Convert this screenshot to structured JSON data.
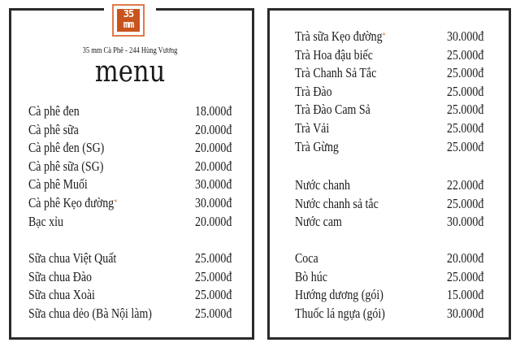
{
  "header": {
    "logo_text": "35 MM",
    "subtitle": "35 mm Cà Phê - 244 Hùng Vương",
    "title": "menu"
  },
  "left": [
    [
      {
        "name": "Cà phê đen",
        "price": "18.000đ"
      },
      {
        "name": "Cà phê sữa",
        "price": "20.000đ"
      },
      {
        "name": "Cà phê đen (SG)",
        "price": "20.000đ"
      },
      {
        "name": "Cà phê sữa (SG)",
        "price": "20.000đ"
      },
      {
        "name": "Cà phê Muối",
        "price": "30.000đ"
      },
      {
        "name": "Cà phê Kẹo đường",
        "price": "30.000đ",
        "star": "*"
      },
      {
        "name": "Bạc xỉu",
        "price": "20.000đ"
      }
    ],
    [
      {
        "name": "Sữa chua Việt Quất",
        "price": "25.000đ"
      },
      {
        "name": "Sữa chua Đào",
        "price": "25.000đ"
      },
      {
        "name": "Sữa chua Xoài",
        "price": "25.000đ"
      },
      {
        "name": "Sữa chua dẻo (Bà Nội làm)",
        "price": "25.000đ"
      }
    ]
  ],
  "right": [
    [
      {
        "name": "Trà sữa Kẹo đường",
        "price": "30.000đ",
        "star": "*"
      },
      {
        "name": "Trà Hoa đậu biếc",
        "price": "25.000đ"
      },
      {
        "name": "Trà Chanh Sả Tắc",
        "price": "25.000đ"
      },
      {
        "name": "Trà Đào",
        "price": "25.000đ"
      },
      {
        "name": "Trà Đào Cam Sả",
        "price": "25.000đ"
      },
      {
        "name": "Trà Vải",
        "price": "25.000đ"
      },
      {
        "name": "Trà Gừng",
        "price": "25.000đ"
      }
    ],
    [
      {
        "name": "Nước chanh",
        "price": "22.000đ"
      },
      {
        "name": "Nước chanh sả tắc",
        "price": "25.000đ"
      },
      {
        "name": "Nước cam",
        "price": "30.000đ"
      }
    ],
    [
      {
        "name": "Coca",
        "price": "20.000đ"
      },
      {
        "name": "Bò húc",
        "price": "25.000đ"
      },
      {
        "name": "Hướng dương (gói)",
        "price": "15.000đ"
      },
      {
        "name": "Thuốc lá ngựa (gói)",
        "price": "30.000đ"
      }
    ]
  ],
  "colors": {
    "accent": "#c8541d",
    "border": "#2a2a2a"
  }
}
